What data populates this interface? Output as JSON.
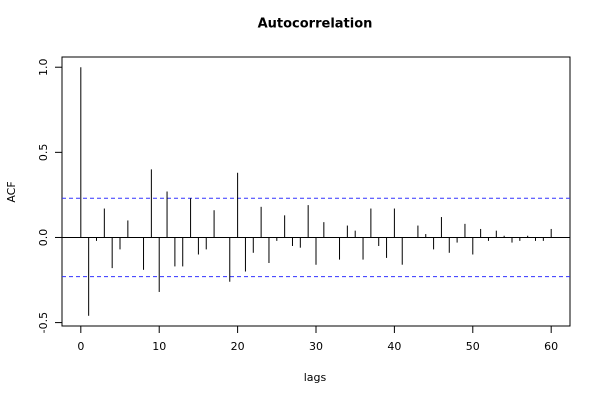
{
  "chart_data": {
    "type": "acf",
    "title": "Autocorrelation",
    "x_label": "lags",
    "y_label": "ACF",
    "x": [
      0,
      1,
      2,
      3,
      4,
      5,
      6,
      7,
      8,
      9,
      10,
      11,
      12,
      13,
      14,
      15,
      16,
      17,
      18,
      19,
      20,
      21,
      22,
      23,
      24,
      25,
      26,
      27,
      28,
      29,
      30,
      31,
      32,
      33,
      34,
      35,
      36,
      37,
      38,
      39,
      40,
      41,
      42,
      43,
      44,
      45,
      46,
      47,
      48,
      49,
      50,
      51,
      52,
      53,
      54,
      55,
      56,
      57,
      58,
      59,
      60
    ],
    "values": [
      1.0,
      -0.46,
      -0.02,
      0.17,
      -0.18,
      -0.07,
      0.1,
      0.0,
      -0.19,
      0.4,
      -0.32,
      0.27,
      -0.17,
      -0.17,
      0.23,
      -0.1,
      -0.07,
      0.16,
      0.0,
      -0.26,
      0.38,
      -0.2,
      -0.09,
      0.18,
      -0.15,
      -0.02,
      0.13,
      -0.05,
      -0.06,
      0.19,
      -0.16,
      0.09,
      0.0,
      -0.13,
      0.07,
      0.04,
      -0.13,
      0.17,
      -0.05,
      -0.12,
      0.17,
      -0.16,
      0.0,
      0.07,
      0.02,
      -0.07,
      0.12,
      -0.09,
      -0.03,
      0.08,
      -0.1,
      0.05,
      -0.02,
      0.04,
      0.01,
      -0.03,
      -0.02,
      0.01,
      -0.02,
      -0.02,
      0.05
    ],
    "color": "#000000",
    "ci": 0.23,
    "ci_color": "#3333ff",
    "xlim": [
      -2.4,
      62.4
    ],
    "ylim": [
      -0.52,
      1.06
    ],
    "xticks": [
      0,
      10,
      20,
      30,
      40,
      50,
      60
    ],
    "yticks": [
      -0.5,
      {
        "value": 0,
        "label": "0.0"
      },
      0.5,
      {
        "value": 1,
        "label": "1.0"
      }
    ]
  }
}
